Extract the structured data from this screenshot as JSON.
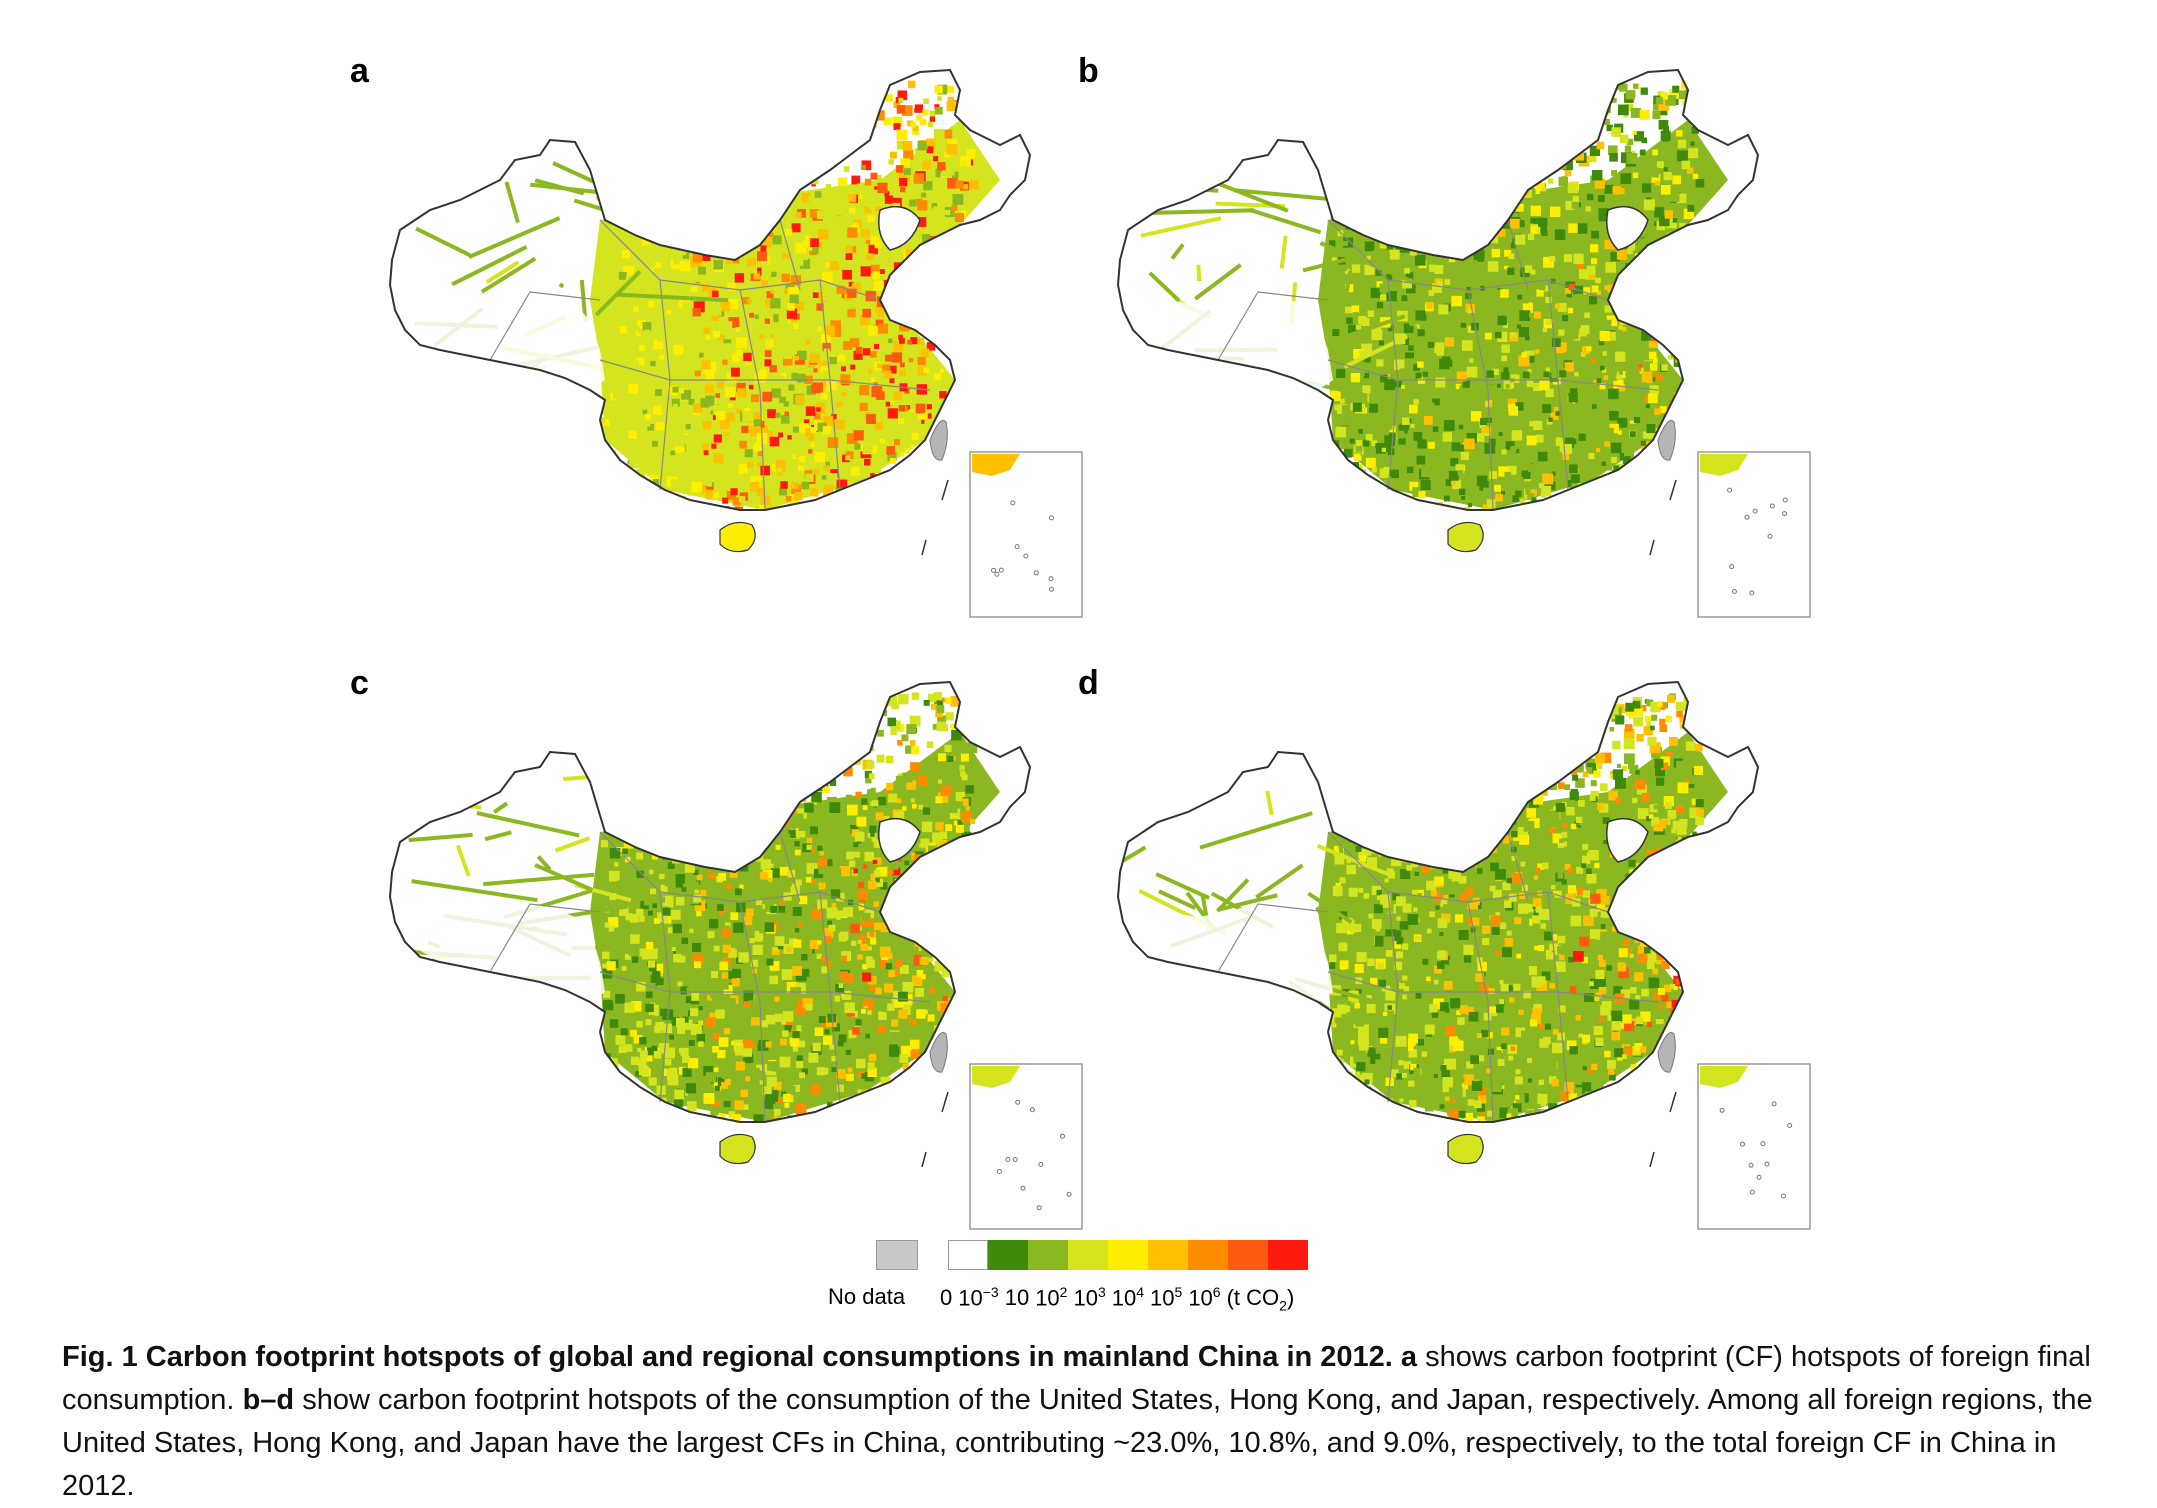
{
  "panels": [
    {
      "letter": "a",
      "intensity": "high"
    },
    {
      "letter": "b",
      "intensity": "low"
    },
    {
      "letter": "c",
      "intensity": "mid"
    },
    {
      "letter": "d",
      "intensity": "mid"
    }
  ],
  "colors": {
    "no_data": "#c8c8c8",
    "zero": "#ffffff",
    "scale": [
      "#3f8a0a",
      "#8bb820",
      "#d4e41e",
      "#ffee00",
      "#ffc000",
      "#ff8c00",
      "#ff5a10",
      "#ff1a10"
    ],
    "border": "#333333",
    "province": "#888888",
    "taiwan": "#b5b5b5"
  },
  "legend": {
    "no_data_label": "No data",
    "ticks": [
      "0",
      "10",
      "−3",
      "10",
      "10",
      "2",
      "10",
      "3",
      "10",
      "4",
      "10",
      "5",
      "10",
      "6",
      "(t CO",
      "2",
      ")"
    ]
  },
  "caption": {
    "fig_label": "Fig. 1",
    "title": "Carbon footprint hotspots of global and regional consumptions in mainland China in 2012.",
    "a_label": "a",
    "a_text": "shows carbon footprint (CF) hotspots of foreign final consumption.",
    "bd_label": "b–d",
    "bd_text": "show carbon footprint hotspots of the consumption of the United States, Hong Kong, and Japan, respectively. Among all foreign regions, the United States, Hong Kong, and Japan have the largest CFs in China, contributing ~23.0%, 10.8%, and 9.0%, respectively, to the total foreign CF in China in 2012."
  }
}
